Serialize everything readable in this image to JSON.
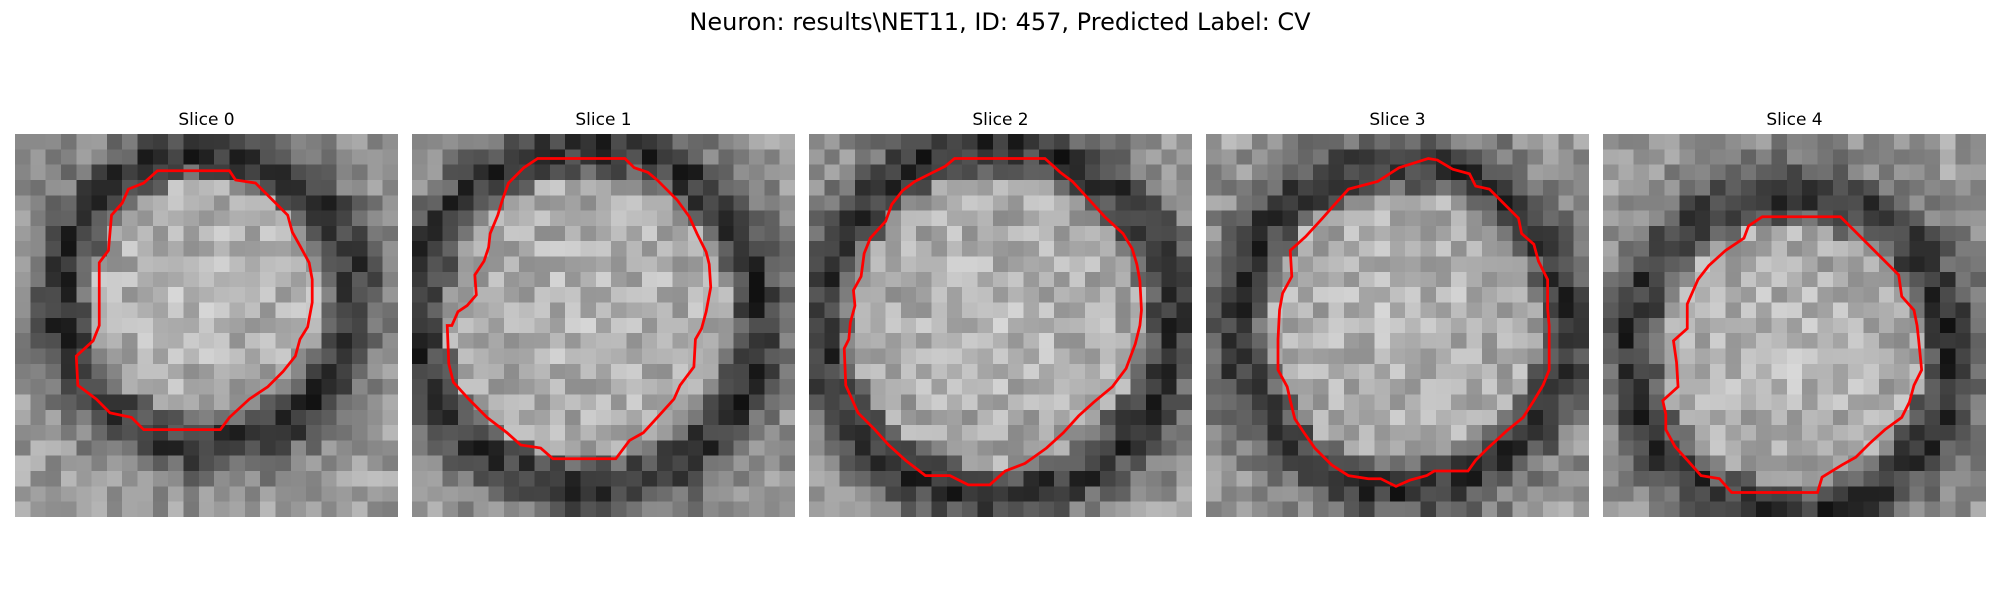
{
  "figure": {
    "title": "Neuron: results\\NET11, ID: 457, Predicted Label: CV"
  },
  "contour_color": "#ff0000",
  "grid_size": 25,
  "panels": [
    {
      "title": "Slice 0",
      "seed": 11,
      "contour": [
        [
          9.3,
          2.4
        ],
        [
          14,
          2.4
        ],
        [
          14.4,
          3
        ],
        [
          15.7,
          3.2
        ],
        [
          16.8,
          4.3
        ],
        [
          17.8,
          5.3
        ],
        [
          18.1,
          6.4
        ],
        [
          18.6,
          7.3
        ],
        [
          19.2,
          8.4
        ],
        [
          19.4,
          9.5
        ],
        [
          19.4,
          11
        ],
        [
          19.1,
          12.6
        ],
        [
          18.6,
          13.4
        ],
        [
          18.3,
          14.5
        ],
        [
          17.5,
          15.5
        ],
        [
          16.5,
          16.5
        ],
        [
          15.3,
          17.3
        ],
        [
          14,
          18.5
        ],
        [
          13.4,
          19.3
        ],
        [
          8.4,
          19.3
        ],
        [
          7.6,
          18.5
        ],
        [
          6.2,
          18.2
        ],
        [
          5.3,
          17.3
        ],
        [
          4.1,
          16.4
        ],
        [
          4,
          14.5
        ],
        [
          5.1,
          13.5
        ],
        [
          5.5,
          12.5
        ],
        [
          5.5,
          8.4
        ],
        [
          6.1,
          7.6
        ],
        [
          6.3,
          5.3
        ],
        [
          7,
          4.5
        ],
        [
          7.4,
          3.6
        ],
        [
          8.4,
          3.2
        ]
      ],
      "dark_ring": {
        "cx": 12.5,
        "cy": 10.8,
        "r": 9.6
      }
    },
    {
      "title": "Slice 1",
      "seed": 23,
      "contour": [
        [
          8.2,
          1.6
        ],
        [
          13.9,
          1.6
        ],
        [
          14.5,
          2.2
        ],
        [
          15.4,
          2.5
        ],
        [
          16,
          3
        ],
        [
          17.3,
          4.3
        ],
        [
          18.1,
          5.4
        ],
        [
          18.6,
          6.5
        ],
        [
          19.2,
          7.7
        ],
        [
          19.4,
          8.5
        ],
        [
          19.5,
          10
        ],
        [
          19.2,
          11.6
        ],
        [
          18.9,
          12.7
        ],
        [
          18.5,
          13.4
        ],
        [
          18.4,
          15.2
        ],
        [
          17.5,
          16.4
        ],
        [
          17.1,
          17.3
        ],
        [
          16.2,
          18.3
        ],
        [
          15.1,
          19.5
        ],
        [
          14.2,
          20
        ],
        [
          13.3,
          21.2
        ],
        [
          9.2,
          21.2
        ],
        [
          8.4,
          20.5
        ],
        [
          7.1,
          20.3
        ],
        [
          6.2,
          19.5
        ],
        [
          4.9,
          18.5
        ],
        [
          3.7,
          17.3
        ],
        [
          2.7,
          16.2
        ],
        [
          2.4,
          15
        ],
        [
          2.3,
          12.5
        ],
        [
          2.6,
          12.5
        ],
        [
          3,
          11.6
        ],
        [
          3.6,
          11.2
        ],
        [
          4.2,
          10.5
        ],
        [
          4.1,
          9.2
        ],
        [
          4.7,
          8.3
        ],
        [
          5,
          7.4
        ],
        [
          5.1,
          6.5
        ],
        [
          5.6,
          5.3
        ],
        [
          5.9,
          4.3
        ],
        [
          6.3,
          3.2
        ],
        [
          7.3,
          2.2
        ]
      ],
      "dark_ring": {
        "cx": 11.5,
        "cy": 12,
        "r": 11.2
      }
    },
    {
      "title": "Slice 2",
      "seed": 37,
      "contour": [
        [
          9.5,
          1.6
        ],
        [
          15.4,
          1.6
        ],
        [
          16.4,
          2.5
        ],
        [
          17.2,
          3.1
        ],
        [
          18.3,
          4.3
        ],
        [
          19.3,
          5.4
        ],
        [
          20.5,
          6.5
        ],
        [
          21.1,
          7.5
        ],
        [
          21.4,
          8.5
        ],
        [
          21.6,
          9.6
        ],
        [
          21.7,
          11.5
        ],
        [
          21.6,
          12.5
        ],
        [
          21.3,
          13.7
        ],
        [
          20.7,
          15.3
        ],
        [
          19.8,
          16.5
        ],
        [
          18.6,
          17.5
        ],
        [
          17.6,
          18.4
        ],
        [
          16.6,
          19.5
        ],
        [
          15.5,
          20.5
        ],
        [
          14.1,
          21.5
        ],
        [
          12.8,
          22
        ],
        [
          11.8,
          22.9
        ],
        [
          10.4,
          22.9
        ],
        [
          9.2,
          22.3
        ],
        [
          7.6,
          22.3
        ],
        [
          6.3,
          21.3
        ],
        [
          5.2,
          20.3
        ],
        [
          4.3,
          19.3
        ],
        [
          3.2,
          18.2
        ],
        [
          2.8,
          17.3
        ],
        [
          2.4,
          16.4
        ],
        [
          2.3,
          14
        ],
        [
          2.6,
          13.4
        ],
        [
          2.7,
          12.3
        ],
        [
          3,
          11.2
        ],
        [
          2.9,
          10.2
        ],
        [
          3.4,
          9.3
        ],
        [
          3.6,
          7.8
        ],
        [
          4,
          6.8
        ],
        [
          5,
          5.7
        ],
        [
          5.4,
          4.6
        ],
        [
          6.1,
          3.7
        ],
        [
          6.9,
          3.1
        ],
        [
          8.1,
          2.5
        ],
        [
          8.9,
          2.1
        ]
      ],
      "dark_ring": {
        "cx": 12.2,
        "cy": 12.2,
        "r": 11.5
      }
    },
    {
      "title": "Slice 3",
      "seed": 41,
      "contour": [
        [
          14.5,
          1.6
        ],
        [
          15.1,
          1.7
        ],
        [
          16.1,
          2.3
        ],
        [
          17.2,
          2.6
        ],
        [
          17.6,
          3.4
        ],
        [
          18.5,
          3.6
        ],
        [
          20.4,
          5.5
        ],
        [
          20.6,
          6.5
        ],
        [
          21.4,
          7.2
        ],
        [
          21.7,
          8.3
        ],
        [
          22.3,
          9.5
        ],
        [
          22.3,
          11.4
        ],
        [
          22.4,
          12.5
        ],
        [
          22.4,
          15.4
        ],
        [
          22,
          16.4
        ],
        [
          21.4,
          17.4
        ],
        [
          20.7,
          18.5
        ],
        [
          19.6,
          19.4
        ],
        [
          18.4,
          20.5
        ],
        [
          17.6,
          21.3
        ],
        [
          17.1,
          22
        ],
        [
          14.9,
          22
        ],
        [
          14.4,
          22.3
        ],
        [
          13.3,
          22.6
        ],
        [
          12.4,
          23
        ],
        [
          11.4,
          22.5
        ],
        [
          10.6,
          22.5
        ],
        [
          9.3,
          22.3
        ],
        [
          8.2,
          21.6
        ],
        [
          7.1,
          20.5
        ],
        [
          6.4,
          19.5
        ],
        [
          5.8,
          18.6
        ],
        [
          5.5,
          17.4
        ],
        [
          5.3,
          16.5
        ],
        [
          4.7,
          15.4
        ],
        [
          4.7,
          13.4
        ],
        [
          4.8,
          11.5
        ],
        [
          5,
          10.4
        ],
        [
          5.6,
          9.3
        ],
        [
          5.5,
          7.6
        ],
        [
          6.5,
          6.7
        ],
        [
          7.6,
          5.5
        ],
        [
          8.4,
          4.6
        ],
        [
          9.3,
          3.6
        ],
        [
          11.2,
          3.1
        ],
        [
          12.6,
          2.2
        ]
      ],
      "dark_ring": {
        "cx": 12.8,
        "cy": 12.5,
        "r": 10.8
      }
    },
    {
      "title": "Slice 4",
      "seed": 53,
      "contour": [
        [
          10.4,
          5.4
        ],
        [
          15.5,
          5.4
        ],
        [
          16.4,
          6.3
        ],
        [
          17.5,
          7.4
        ],
        [
          18.4,
          8.3
        ],
        [
          19.3,
          9.2
        ],
        [
          19.5,
          10.6
        ],
        [
          20.3,
          11.5
        ],
        [
          20.5,
          12.5
        ],
        [
          20.6,
          13.4
        ],
        [
          20.8,
          15.4
        ],
        [
          20.3,
          16.4
        ],
        [
          20,
          17.5
        ],
        [
          19.5,
          18.5
        ],
        [
          18.4,
          19.3
        ],
        [
          17.4,
          20.2
        ],
        [
          16.5,
          21.1
        ],
        [
          15.6,
          21.6
        ],
        [
          14.3,
          22.4
        ],
        [
          14,
          23.4
        ],
        [
          8.4,
          23.4
        ],
        [
          7.6,
          22.5
        ],
        [
          6.4,
          22.3
        ],
        [
          5.6,
          21.4
        ],
        [
          4.7,
          20.4
        ],
        [
          4.1,
          19.3
        ],
        [
          4.1,
          18.3
        ],
        [
          3.9,
          17.4
        ],
        [
          4.9,
          16.5
        ],
        [
          4.8,
          14.9
        ],
        [
          4.6,
          13.5
        ],
        [
          5.5,
          12.7
        ],
        [
          5.5,
          11.1
        ],
        [
          6.2,
          9.5
        ],
        [
          6.9,
          8.6
        ],
        [
          8,
          7.6
        ],
        [
          9.2,
          6.8
        ],
        [
          9.5,
          6
        ]
      ],
      "dark_ring": {
        "cx": 12.3,
        "cy": 14.4,
        "r": 10.5
      }
    }
  ]
}
